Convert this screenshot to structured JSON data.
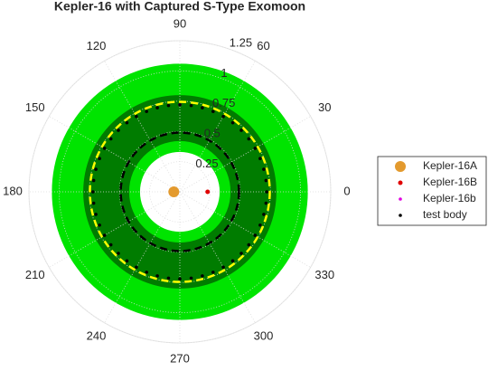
{
  "chart_data": {
    "type": "polar",
    "title": "Kepler-16 with Captured S-Type Exomoon",
    "rlim": [
      0,
      1.25
    ],
    "rticks": [
      0.25,
      0.5,
      0.75,
      1,
      1.25
    ],
    "thetaticks": [
      0,
      30,
      60,
      90,
      120,
      150,
      180,
      210,
      240,
      270,
      300,
      330
    ],
    "regions": [
      {
        "r": [
          0.33,
          1.06
        ],
        "color": "#00e400"
      },
      {
        "r": [
          0.42,
          0.8
        ],
        "color": "#007c00"
      }
    ],
    "circles": [
      {
        "r": 0.49,
        "color": "#000000"
      },
      {
        "r": 0.745,
        "color": "#ffff00"
      }
    ],
    "legend": "right",
    "series": [
      {
        "name": "Kepler-16A",
        "color": "#e39a2e",
        "size": 6,
        "theta": [
          180
        ],
        "r": [
          0.05
        ]
      },
      {
        "name": "Kepler-16B",
        "color": "#e00000",
        "size": 2.5,
        "theta": [
          0
        ],
        "r": [
          0.23
        ]
      },
      {
        "name": "Kepler-16b",
        "color": "#e000e0",
        "size": 1.8,
        "theta": [
          90
        ],
        "r": [
          0.72
        ]
      },
      {
        "name": "test body",
        "color": "#000000",
        "size": 1.8,
        "theta": [
          0,
          7.5,
          15,
          22.5,
          30,
          37.5,
          45,
          52.5,
          60,
          67.5,
          75,
          82.5,
          90,
          97.5,
          105,
          112.5,
          120,
          127.5,
          135,
          142.5,
          150,
          157.5,
          165,
          172.5,
          180,
          187.5,
          195,
          202.5,
          210,
          217.5,
          225,
          232.5,
          240,
          247.5,
          255,
          262.5,
          270,
          277.5,
          285,
          292.5,
          300,
          307.5,
          315,
          322.5,
          330,
          337.5,
          345,
          352.5
        ],
        "r": [
          0.72,
          0.72,
          0.72,
          0.72,
          0.72,
          0.72,
          0.72,
          0.72,
          0.72,
          0.72,
          0.72,
          0.72,
          0.72,
          0.72,
          0.72,
          0.72,
          0.72,
          0.72,
          0.72,
          0.72,
          0.72,
          0.72,
          0.72,
          0.72,
          0.72,
          0.72,
          0.72,
          0.72,
          0.72,
          0.72,
          0.72,
          0.72,
          0.72,
          0.72,
          0.72,
          0.72,
          0.72,
          0.72,
          0.72,
          0.72,
          0.72,
          0.72,
          0.72,
          0.72,
          0.72,
          0.72,
          0.72,
          0.72
        ]
      }
    ]
  }
}
